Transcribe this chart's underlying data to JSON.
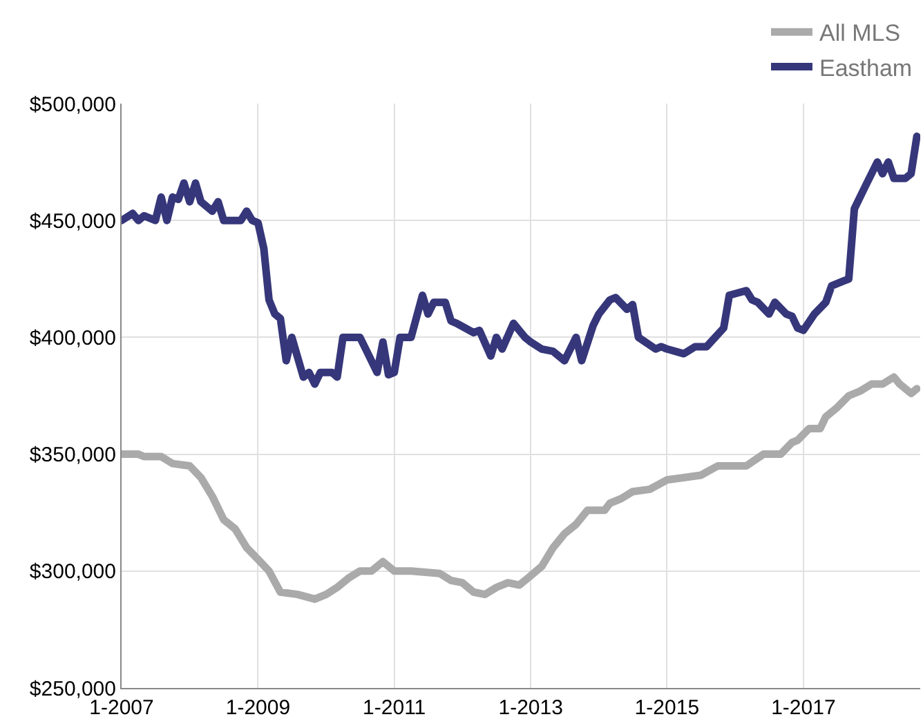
{
  "chart_data": {
    "type": "line",
    "legend": "top right",
    "grid": true,
    "line_style": "solid",
    "marker": "none",
    "xlim": [
      "2007-01-01",
      "2018-09-19"
    ],
    "xticks": [
      {
        "value": "2007-01",
        "label": "1-2007"
      },
      {
        "value": "2009-01",
        "label": "1-2009"
      },
      {
        "value": "2011-01",
        "label": "1-2011"
      },
      {
        "value": "2013-01",
        "label": "1-2013"
      },
      {
        "value": "2015-01",
        "label": "1-2015"
      },
      {
        "value": "2017-01",
        "label": "1-2017"
      }
    ],
    "ylim": [
      250000,
      500000
    ],
    "yticks": [
      {
        "value": 250000,
        "label": "$250,000"
      },
      {
        "value": 300000,
        "label": "$300,000"
      },
      {
        "value": 350000,
        "label": "$350,000"
      },
      {
        "value": 400000,
        "label": "$400,000"
      },
      {
        "value": 450000,
        "label": "$450,000"
      },
      {
        "value": 500000,
        "label": "$500,000"
      }
    ],
    "series": [
      {
        "name": "All MLS",
        "color": "#aaaaaa",
        "x": [
          "2007-01",
          "2007-04",
          "2007-05",
          "2007-08",
          "2007-10",
          "2008-01",
          "2008-03",
          "2008-05",
          "2008-07",
          "2008-09",
          "2008-11",
          "2009-01",
          "2009-03",
          "2009-05",
          "2009-08",
          "2009-11",
          "2010-01",
          "2010-03",
          "2010-05",
          "2010-07",
          "2010-09",
          "2010-11",
          "2011-01",
          "2011-04",
          "2011-09",
          "2011-11",
          "2012-01",
          "2012-03",
          "2012-05",
          "2012-07",
          "2012-09",
          "2012-11",
          "2013-01",
          "2013-03",
          "2013-05",
          "2013-07",
          "2013-09",
          "2013-11",
          "2014-02",
          "2014-03",
          "2014-05",
          "2014-07",
          "2014-10",
          "2015-01",
          "2015-04",
          "2015-07",
          "2015-10",
          "2016-03",
          "2016-06",
          "2016-09",
          "2016-11",
          "2016-12",
          "2017-02",
          "2017-04",
          "2017-05",
          "2017-07",
          "2017-09",
          "2017-11",
          "2018-01",
          "2018-03",
          "2018-05",
          "2018-06",
          "2018-08",
          "2018-09"
        ],
        "values": [
          350000,
          350000,
          349000,
          349000,
          346000,
          345000,
          340000,
          332000,
          322000,
          318000,
          310000,
          305000,
          300000,
          291000,
          290000,
          288000,
          290000,
          293000,
          297000,
          300000,
          300000,
          304000,
          300000,
          300000,
          299000,
          296000,
          295000,
          291000,
          290000,
          293000,
          295000,
          294000,
          298000,
          302000,
          310000,
          316000,
          320000,
          326000,
          326000,
          329000,
          331000,
          334000,
          335000,
          339000,
          340000,
          341000,
          345000,
          345000,
          350000,
          350000,
          355000,
          356000,
          361000,
          361000,
          366000,
          370000,
          375000,
          377000,
          380000,
          380000,
          383000,
          380000,
          376000,
          378000
        ]
      },
      {
        "name": "Eastham",
        "color": "#36377a",
        "x": [
          "2007-01",
          "2007-03",
          "2007-04",
          "2007-05",
          "2007-07",
          "2007-08",
          "2007-09",
          "2007-10",
          "2007-11",
          "2007-12",
          "2008-01",
          "2008-02",
          "2008-03",
          "2008-05",
          "2008-06",
          "2008-07",
          "2008-10",
          "2008-11",
          "2008-12",
          "2009-01",
          "2009-02",
          "2009-03",
          "2009-04",
          "2009-05",
          "2009-06",
          "2009-07",
          "2009-09",
          "2009-10",
          "2009-11",
          "2009-12",
          "2010-02",
          "2010-03",
          "2010-04",
          "2010-07",
          "2010-08",
          "2010-10",
          "2010-11",
          "2010-12",
          "2011-01",
          "2011-02",
          "2011-04",
          "2011-06",
          "2011-07",
          "2011-08",
          "2011-10",
          "2011-11",
          "2011-12",
          "2012-03",
          "2012-04",
          "2012-06",
          "2012-07",
          "2012-08",
          "2012-10",
          "2012-12",
          "2013-01",
          "2013-03",
          "2013-05",
          "2013-07",
          "2013-09",
          "2013-10",
          "2013-12",
          "2014-01",
          "2014-03",
          "2014-04",
          "2014-06",
          "2014-07",
          "2014-08",
          "2014-11",
          "2014-12",
          "2015-01",
          "2015-04",
          "2015-06",
          "2015-08",
          "2015-11",
          "2015-12",
          "2016-03",
          "2016-04",
          "2016-05",
          "2016-07",
          "2016-08",
          "2016-10",
          "2016-11",
          "2016-12",
          "2017-01",
          "2017-03",
          "2017-05",
          "2017-06",
          "2017-08",
          "2017-09",
          "2017-10",
          "2017-12",
          "2018-02",
          "2018-03",
          "2018-04",
          "2018-05",
          "2018-07",
          "2018-08",
          "2018-09"
        ],
        "values": [
          450000,
          453000,
          450000,
          452000,
          450000,
          460000,
          450000,
          460000,
          459000,
          466000,
          458000,
          466000,
          458000,
          454000,
          458000,
          450000,
          450000,
          454000,
          450000,
          449000,
          438000,
          416000,
          410000,
          408000,
          390000,
          400000,
          383000,
          385000,
          380000,
          385000,
          385000,
          383000,
          400000,
          400000,
          395000,
          385000,
          398000,
          384000,
          385000,
          400000,
          400000,
          418000,
          410000,
          415000,
          415000,
          407000,
          406000,
          402000,
          403000,
          392000,
          400000,
          395000,
          406000,
          400000,
          398000,
          395000,
          394000,
          390000,
          400000,
          390000,
          405000,
          410000,
          416000,
          417000,
          412000,
          414000,
          400000,
          395000,
          396000,
          395000,
          393000,
          396000,
          396000,
          404000,
          418000,
          420000,
          416000,
          415000,
          410000,
          415000,
          410000,
          409000,
          404000,
          403000,
          410000,
          415000,
          422000,
          424000,
          425000,
          455000,
          465000,
          475000,
          470000,
          475000,
          468000,
          468000,
          470000,
          486000
        ]
      }
    ]
  }
}
